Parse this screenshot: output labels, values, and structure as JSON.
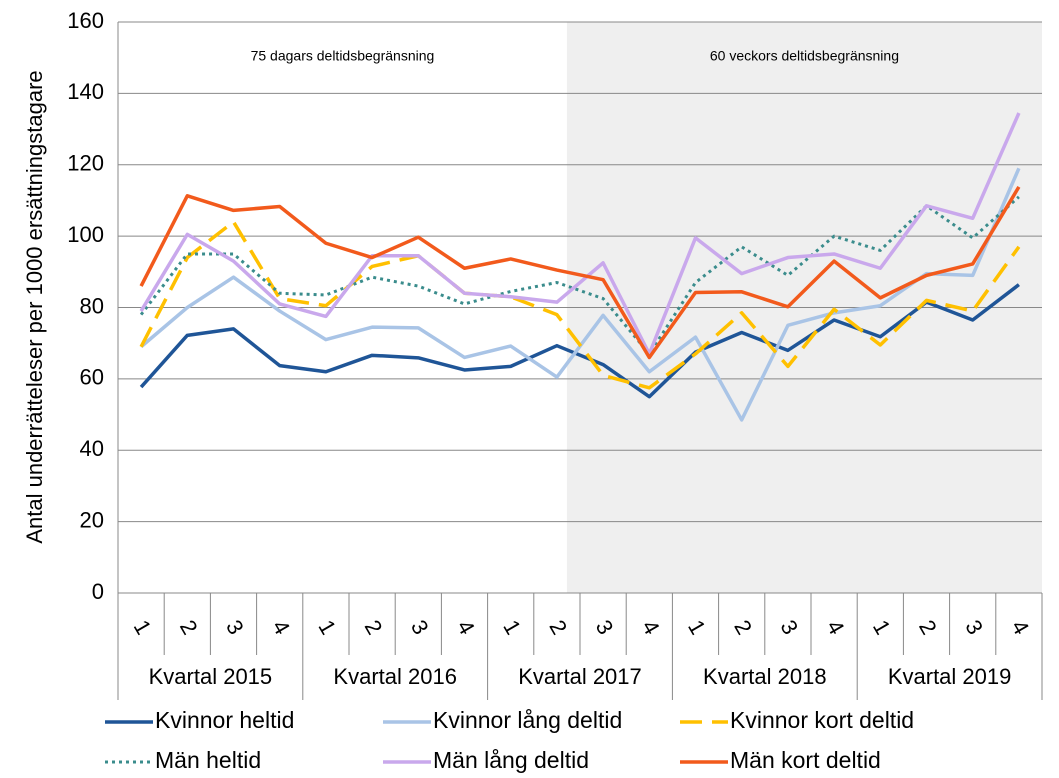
{
  "chart_data": {
    "type": "line",
    "y_label": "Antal underrätteleser per 1000 ersättningstagare",
    "categories": [
      "1",
      "2",
      "3",
      "4",
      "1",
      "2",
      "3",
      "4",
      "1",
      "2",
      "3",
      "4",
      "1",
      "2",
      "3",
      "4",
      "1",
      "2",
      "3",
      "4"
    ],
    "groups": [
      "Kvartal 2015",
      "Kvartal 2016",
      "Kvartal 2017",
      "Kvartal 2018",
      "Kvartal 2019"
    ],
    "annotations": [
      {
        "text": "75 dagars deltidsbegränsning",
        "from_category": 0,
        "shaded": false
      },
      {
        "text": "60 veckors deltidsbegränsning",
        "from_category": 9,
        "shaded": true
      }
    ],
    "ylim": [
      0,
      160
    ],
    "yticks": [
      0,
      20,
      40,
      60,
      80,
      100,
      120,
      140,
      160
    ],
    "grid": true,
    "legend": "bottom",
    "series": [
      {
        "name": "Kvinnor heltid",
        "color": "#1f5597",
        "dash": "solid",
        "values": [
          57.7,
          72.2,
          74,
          63.7,
          62,
          66.6,
          65.9,
          62.5,
          63.5,
          69.3,
          64,
          55,
          67.5,
          73,
          68,
          76.5,
          71.8,
          81.5,
          76.5,
          86.4
        ]
      },
      {
        "name": "Kvinnor lång deltid",
        "color": "#a9c4e6",
        "dash": "solid",
        "values": [
          69,
          80,
          88.5,
          79,
          71,
          74.5,
          74.3,
          66,
          69.2,
          60.5,
          77.8,
          62,
          71.7,
          48.5,
          75,
          78.5,
          80.5,
          89.5,
          89,
          119
        ]
      },
      {
        "name": "Kvinnor kort deltid",
        "color": "#ffc000",
        "dash": "dashed",
        "values": [
          69,
          94,
          104,
          82.5,
          80.5,
          91.5,
          94.5,
          84,
          83,
          78,
          61,
          57.5,
          67,
          78.5,
          63.5,
          79.5,
          69.5,
          82,
          79,
          97
        ]
      },
      {
        "name": "Män heltid",
        "color": "#3a8c8c",
        "dash": "dotted",
        "values": [
          78,
          95,
          95,
          84,
          83.5,
          88.5,
          86,
          81,
          84.5,
          87,
          82.5,
          67,
          87,
          97,
          89,
          100,
          96,
          108.5,
          99.5,
          111
        ]
      },
      {
        "name": "Män lång deltid",
        "color": "#c9a8ec",
        "dash": "solid",
        "values": [
          79,
          100.5,
          93,
          81,
          77.5,
          94.5,
          94.5,
          84,
          83,
          81.5,
          92.5,
          67,
          99.5,
          89.5,
          94,
          95,
          91,
          108.5,
          105,
          134.5
        ]
      },
      {
        "name": "Män kort deltid",
        "color": "#f25a1c",
        "dash": "solid",
        "values": [
          86,
          111.3,
          107.2,
          108.3,
          98,
          94,
          99.7,
          91,
          93.6,
          90.5,
          87.8,
          66,
          84.2,
          84.4,
          80.2,
          93,
          82.7,
          89,
          92.2,
          113.8
        ]
      }
    ]
  }
}
